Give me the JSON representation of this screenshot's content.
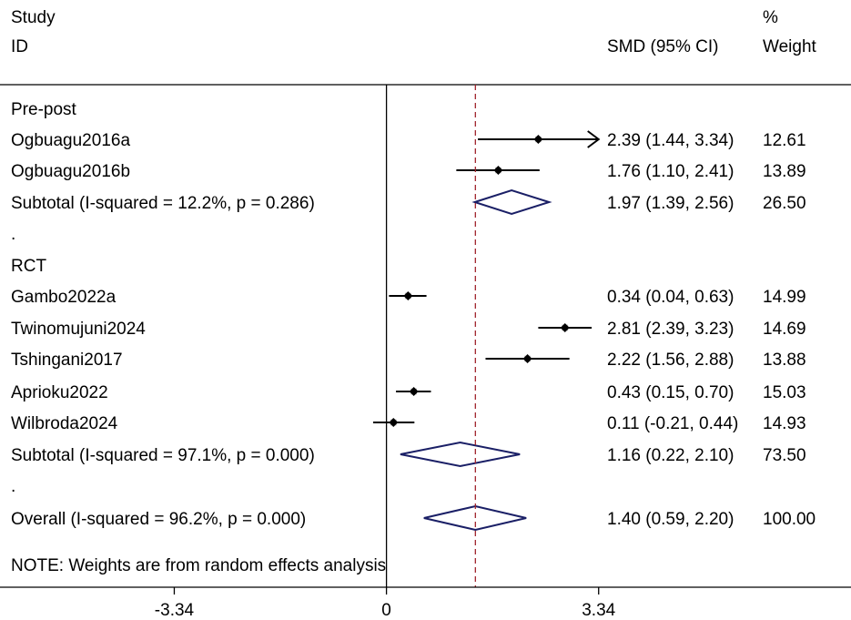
{
  "chart_data": {
    "type": "forest",
    "header": {
      "col1_line1": "Study",
      "col1_line2": "ID",
      "col2": "SMD (95% CI)",
      "col3_line1": "%",
      "col3_line2": "Weight"
    },
    "xaxis": {
      "ticks": [
        -3.34,
        0,
        3.34
      ],
      "tick_labels": [
        "-3.34",
        "0",
        "3.34"
      ],
      "range": [
        -6.1,
        7.4
      ],
      "null_line": 0,
      "overall_line": 1.4
    },
    "rows": [
      {
        "kind": "group",
        "label": "Pre-post"
      },
      {
        "kind": "study",
        "label": "Ogbuagu2016a",
        "est": 2.39,
        "lo": 1.44,
        "hi": 3.34,
        "arrow": true,
        "text": "2.39 (1.44, 3.34)",
        "weight": "12.61"
      },
      {
        "kind": "study",
        "label": "Ogbuagu2016b",
        "est": 1.76,
        "lo": 1.1,
        "hi": 2.41,
        "text": "1.76 (1.10, 2.41)",
        "weight": "13.89"
      },
      {
        "kind": "subtotal",
        "label": "Subtotal  (I-squared = 12.2%, p = 0.286)",
        "est": 1.97,
        "lo": 1.39,
        "hi": 2.56,
        "text": "1.97 (1.39, 2.56)",
        "weight": "26.50"
      },
      {
        "kind": "group",
        "label": "."
      },
      {
        "kind": "group",
        "label": "RCT"
      },
      {
        "kind": "study",
        "label": "Gambo2022a",
        "est": 0.34,
        "lo": 0.04,
        "hi": 0.63,
        "text": "0.34 (0.04, 0.63)",
        "weight": "14.99"
      },
      {
        "kind": "study",
        "label": "Twinomujuni2024",
        "est": 2.81,
        "lo": 2.39,
        "hi": 3.23,
        "text": "2.81 (2.39, 3.23)",
        "weight": "14.69"
      },
      {
        "kind": "study",
        "label": "Tshingani2017",
        "est": 2.22,
        "lo": 1.56,
        "hi": 2.88,
        "text": "2.22 (1.56, 2.88)",
        "weight": "13.88"
      },
      {
        "kind": "study",
        "label": "Aprioku2022",
        "est": 0.43,
        "lo": 0.15,
        "hi": 0.7,
        "text": "0.43 (0.15, 0.70)",
        "weight": "15.03"
      },
      {
        "kind": "study",
        "label": "Wilbroda2024",
        "est": 0.11,
        "lo": -0.21,
        "hi": 0.44,
        "text": "0.11 (-0.21, 0.44)",
        "weight": "14.93"
      },
      {
        "kind": "subtotal",
        "label": "Subtotal  (I-squared = 97.1%, p = 0.000)",
        "est": 1.16,
        "lo": 0.22,
        "hi": 2.1,
        "text": "1.16 (0.22, 2.10)",
        "weight": "73.50"
      },
      {
        "kind": "group",
        "label": "."
      },
      {
        "kind": "subtotal",
        "label": "Overall  (I-squared = 96.2%, p = 0.000)",
        "est": 1.4,
        "lo": 0.59,
        "hi": 2.2,
        "text": "1.40 (0.59, 2.20)",
        "weight": "100.00"
      }
    ],
    "note": "NOTE: Weights are from random effects analysis",
    "colors": {
      "diamond": "#1a1f66",
      "overall_line": "#a0242c",
      "box": "#b0b0b0"
    }
  }
}
